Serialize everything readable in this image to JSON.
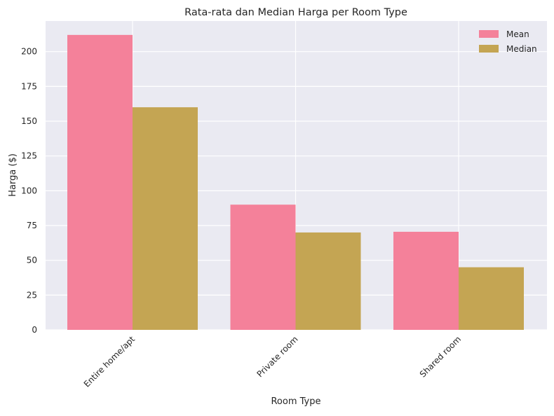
{
  "chart_data": {
    "type": "bar",
    "title": "Rata-rata dan Median Harga per Room Type",
    "xlabel": "Room Type",
    "ylabel": "Harga ($)",
    "categories": [
      "Entire home/apt",
      "Private room",
      "Shared room"
    ],
    "series": [
      {
        "name": "Mean",
        "values": [
          212,
          90,
          70.5
        ],
        "color": "#f4819a"
      },
      {
        "name": "Median",
        "values": [
          160,
          70,
          45
        ],
        "color": "#c4a553"
      }
    ],
    "ylim": [
      0,
      222
    ],
    "yticks": [
      0,
      25,
      50,
      75,
      100,
      125,
      150,
      175,
      200
    ],
    "grid": true,
    "legend_position": "top-right",
    "background_color": "#eaeaf2"
  }
}
